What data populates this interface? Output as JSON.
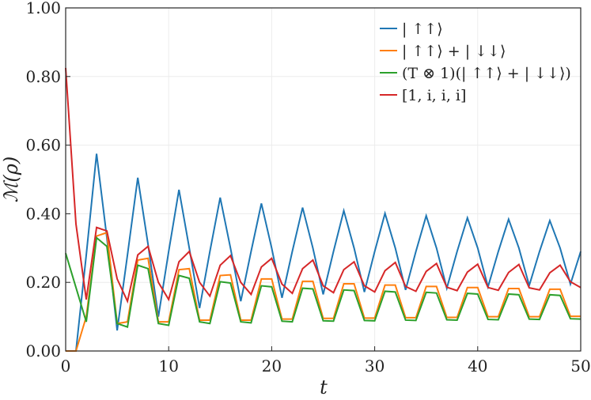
{
  "chart_data": {
    "type": "line",
    "xlabel": "t",
    "ylabel": "ℳ(ρ)",
    "xlim": [
      0,
      50
    ],
    "ylim": [
      0,
      1
    ],
    "xticks": [
      0,
      10,
      20,
      30,
      40,
      50
    ],
    "yticks": [
      0,
      0.2,
      0.4,
      0.6,
      0.8,
      1.0
    ],
    "xtick_labels": [
      "0",
      "10",
      "20",
      "30",
      "40",
      "50"
    ],
    "ytick_labels": [
      "0.00",
      "0.20",
      "0.40",
      "0.60",
      "0.80",
      "1.00"
    ],
    "grid": true,
    "legend_position": "top-right",
    "x": [
      0,
      1,
      2,
      3,
      4,
      5,
      6,
      7,
      8,
      9,
      10,
      11,
      12,
      13,
      14,
      15,
      16,
      17,
      18,
      19,
      20,
      21,
      22,
      23,
      24,
      25,
      26,
      27,
      28,
      29,
      30,
      31,
      32,
      33,
      34,
      35,
      36,
      37,
      38,
      39,
      40,
      41,
      42,
      43,
      44,
      45,
      46,
      47,
      48,
      49,
      50
    ],
    "series": [
      {
        "name": "| ↑↑⟩",
        "color": "#1f77b4",
        "values": [
          0,
          0,
          0.28,
          0.575,
          0.33,
          0.06,
          0.28,
          0.505,
          0.31,
          0.1,
          0.29,
          0.47,
          0.3,
          0.125,
          0.29,
          0.447,
          0.3,
          0.145,
          0.29,
          0.43,
          0.3,
          0.155,
          0.29,
          0.418,
          0.3,
          0.165,
          0.29,
          0.409,
          0.3,
          0.172,
          0.29,
          0.401,
          0.3,
          0.178,
          0.29,
          0.394,
          0.3,
          0.183,
          0.29,
          0.388,
          0.3,
          0.187,
          0.29,
          0.384,
          0.3,
          0.191,
          0.29,
          0.38,
          0.3,
          0.195,
          0.29
        ]
      },
      {
        "name": "| ↑↑⟩ + | ↓↓⟩",
        "color": "#ff7f0e",
        "values": [
          0,
          0,
          0.1,
          0.335,
          0.345,
          0.08,
          0.085,
          0.265,
          0.27,
          0.085,
          0.085,
          0.237,
          0.24,
          0.09,
          0.09,
          0.22,
          0.222,
          0.09,
          0.09,
          0.21,
          0.21,
          0.093,
          0.093,
          0.203,
          0.203,
          0.095,
          0.095,
          0.196,
          0.196,
          0.096,
          0.096,
          0.192,
          0.192,
          0.097,
          0.097,
          0.188,
          0.188,
          0.098,
          0.098,
          0.185,
          0.185,
          0.1,
          0.1,
          0.182,
          0.182,
          0.1,
          0.1,
          0.18,
          0.18,
          0.101,
          0.101
        ]
      },
      {
        "name": "(T ⊗ 1)(| ↑↑⟩ + | ↓↓⟩)",
        "color": "#2ca02c",
        "values": [
          0.285,
          0.185,
          0.085,
          0.33,
          0.305,
          0.08,
          0.07,
          0.25,
          0.24,
          0.08,
          0.075,
          0.22,
          0.212,
          0.085,
          0.08,
          0.202,
          0.198,
          0.085,
          0.082,
          0.19,
          0.187,
          0.087,
          0.085,
          0.183,
          0.181,
          0.088,
          0.087,
          0.178,
          0.176,
          0.089,
          0.088,
          0.174,
          0.172,
          0.09,
          0.089,
          0.171,
          0.169,
          0.091,
          0.09,
          0.168,
          0.166,
          0.092,
          0.091,
          0.166,
          0.164,
          0.093,
          0.092,
          0.164,
          0.162,
          0.094,
          0.093
        ]
      },
      {
        "name": "[1, i, i, i]",
        "color": "#d62728",
        "values": [
          0.825,
          0.37,
          0.15,
          0.36,
          0.35,
          0.21,
          0.145,
          0.28,
          0.305,
          0.2,
          0.15,
          0.26,
          0.29,
          0.2,
          0.16,
          0.25,
          0.278,
          0.2,
          0.165,
          0.245,
          0.27,
          0.195,
          0.168,
          0.24,
          0.265,
          0.19,
          0.17,
          0.237,
          0.26,
          0.19,
          0.172,
          0.234,
          0.258,
          0.188,
          0.174,
          0.232,
          0.255,
          0.186,
          0.176,
          0.23,
          0.253,
          0.185,
          0.177,
          0.229,
          0.252,
          0.184,
          0.178,
          0.228,
          0.25,
          0.202,
          0.185
        ]
      }
    ]
  }
}
